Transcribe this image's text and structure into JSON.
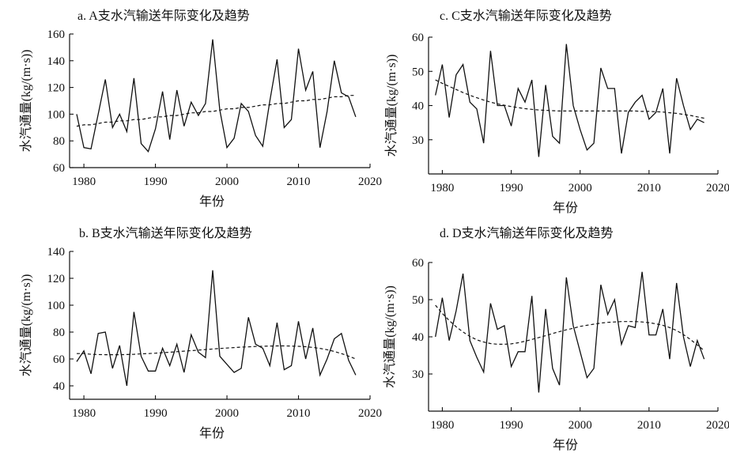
{
  "chart_data": [
    {
      "type": "line",
      "title": "a. A支水汽输送年际变化及趋势",
      "xlabel": "年份",
      "ylabel": "水汽通量(kg/(m·s))",
      "xlim": [
        1978,
        2020
      ],
      "ylim": [
        60,
        160
      ],
      "xticks": [
        1980,
        1990,
        2000,
        2010,
        2020
      ],
      "yticks": [
        60,
        80,
        100,
        120,
        140,
        160
      ],
      "x": [
        1979,
        1980,
        1981,
        1982,
        1983,
        1984,
        1985,
        1986,
        1987,
        1988,
        1989,
        1990,
        1991,
        1992,
        1993,
        1994,
        1995,
        1996,
        1997,
        1998,
        1999,
        2000,
        2001,
        2002,
        2003,
        2004,
        2005,
        2006,
        2007,
        2008,
        2009,
        2010,
        2011,
        2012,
        2013,
        2014,
        2015,
        2016,
        2017,
        2018
      ],
      "series": [
        {
          "values": [
            100,
            75,
            74,
            100,
            126,
            90,
            100,
            87,
            127,
            78,
            72,
            89,
            117,
            81,
            118,
            91,
            109,
            99,
            108,
            156,
            103,
            75,
            82,
            108,
            102,
            84,
            76,
            110,
            141,
            90,
            96,
            149,
            118,
            132,
            75,
            102,
            140,
            116,
            113,
            98
          ]
        },
        {
          "style": "trend",
          "values": [
            91,
            92,
            92,
            93,
            94,
            94,
            95,
            95,
            96,
            96,
            97,
            98,
            98,
            99,
            99,
            100,
            101,
            101,
            102,
            102,
            103,
            104,
            104,
            105,
            105,
            106,
            107,
            107,
            108,
            108,
            109,
            110,
            110,
            111,
            111,
            112,
            113,
            113,
            114,
            114
          ]
        }
      ]
    },
    {
      "type": "line",
      "title": "c. C支水汽输送年际变化及趋势",
      "xlabel": "年份",
      "ylabel": "水汽通量(kg/(m·s))",
      "xlim": [
        1978,
        2020
      ],
      "ylim": [
        20,
        60
      ],
      "xticks": [
        1980,
        1990,
        2000,
        2010,
        2020
      ],
      "yticks": [
        30,
        40,
        50,
        60
      ],
      "x": [
        1979,
        1980,
        1981,
        1982,
        1983,
        1984,
        1985,
        1986,
        1987,
        1988,
        1989,
        1990,
        1991,
        1992,
        1993,
        1994,
        1995,
        1996,
        1997,
        1998,
        1999,
        2000,
        2001,
        2002,
        2003,
        2004,
        2005,
        2006,
        2007,
        2008,
        2009,
        2010,
        2011,
        2012,
        2013,
        2014,
        2015,
        2016,
        2017,
        2018
      ],
      "series": [
        {
          "values": [
            43,
            52,
            36.5,
            49,
            52,
            41,
            39,
            29,
            56,
            40,
            40,
            34,
            45,
            41,
            47.5,
            25,
            46,
            31,
            29,
            58,
            40,
            33,
            27,
            29,
            51,
            45,
            45,
            26,
            38,
            41,
            43,
            36,
            38,
            45,
            26,
            48,
            40,
            33,
            36,
            35
          ]
        },
        {
          "style": "trend",
          "values": [
            47.5,
            46.5,
            45.6,
            44.7,
            43.8,
            43.0,
            42.3,
            41.6,
            41.0,
            40.5,
            40.1,
            39.7,
            39.4,
            39.1,
            38.9,
            38.7,
            38.6,
            38.5,
            38.4,
            38.4,
            38.4,
            38.4,
            38.4,
            38.4,
            38.4,
            38.4,
            38.4,
            38.4,
            38.4,
            38.4,
            38.3,
            38.3,
            38.2,
            38.1,
            37.9,
            37.7,
            37.4,
            37.1,
            36.7,
            36.3
          ]
        }
      ]
    },
    {
      "type": "line",
      "title": "b. B支水汽输送年际变化及趋势",
      "xlabel": "年份",
      "ylabel": "水汽通量(kg/(m·s))",
      "xlim": [
        1978,
        2020
      ],
      "ylim": [
        30,
        140
      ],
      "xticks": [
        1980,
        1990,
        2000,
        2010,
        2020
      ],
      "yticks": [
        40,
        60,
        80,
        100,
        120,
        140
      ],
      "x": [
        1979,
        1980,
        1981,
        1982,
        1983,
        1984,
        1985,
        1986,
        1987,
        1988,
        1989,
        1990,
        1991,
        1992,
        1993,
        1994,
        1995,
        1996,
        1997,
        1998,
        1999,
        2000,
        2001,
        2002,
        2003,
        2004,
        2005,
        2006,
        2007,
        2008,
        2009,
        2010,
        2011,
        2012,
        2013,
        2014,
        2015,
        2016,
        2017,
        2018
      ],
      "series": [
        {
          "values": [
            58,
            66,
            49,
            79,
            80,
            53,
            70,
            40,
            95,
            62,
            51,
            51,
            68,
            55,
            71,
            50,
            78,
            65,
            61,
            126,
            62,
            56,
            50,
            53,
            91,
            71,
            68,
            55,
            87,
            52,
            55,
            88,
            60,
            83,
            48,
            60,
            75,
            79,
            59,
            48
          ]
        },
        {
          "style": "trend",
          "values": [
            64,
            64,
            63.5,
            63.3,
            63.2,
            63.2,
            63.2,
            63.3,
            63.5,
            63.8,
            64.0,
            64.3,
            64.7,
            65.0,
            65.4,
            65.8,
            66.2,
            66.6,
            67.0,
            67.4,
            67.8,
            68.1,
            68.5,
            68.8,
            69.0,
            69.3,
            69.5,
            69.6,
            69.7,
            69.7,
            69.6,
            69.4,
            69.1,
            68.6,
            67.9,
            66.9,
            65.6,
            64.0,
            62.1,
            60.0
          ]
        }
      ]
    },
    {
      "type": "line",
      "title": "d. D支水汽输送年际变化及趋势",
      "xlabel": "年份",
      "ylabel": "水汽通量(kg/(m·s))",
      "xlim": [
        1978,
        2020
      ],
      "ylim": [
        20,
        60
      ],
      "xticks": [
        1980,
        1990,
        2000,
        2010,
        2020
      ],
      "yticks": [
        30,
        40,
        50,
        60
      ],
      "x": [
        1979,
        1980,
        1981,
        1982,
        1983,
        1984,
        1985,
        1986,
        1987,
        1988,
        1989,
        1990,
        1991,
        1992,
        1993,
        1994,
        1995,
        1996,
        1997,
        1998,
        1999,
        2000,
        2001,
        2002,
        2003,
        2004,
        2005,
        2006,
        2007,
        2008,
        2009,
        2010,
        2011,
        2012,
        2013,
        2014,
        2015,
        2016,
        2017,
        2018
      ],
      "series": [
        {
          "values": [
            40,
            50.5,
            39,
            47,
            57,
            39,
            34.5,
            30.5,
            49,
            42,
            43,
            32,
            36,
            36,
            51,
            25,
            47.5,
            31.5,
            27,
            56,
            43,
            36,
            29,
            31.5,
            54,
            46,
            50,
            38,
            43,
            42.5,
            57.5,
            40.5,
            40.5,
            47.5,
            34,
            54.5,
            40,
            32,
            39,
            34
          ]
        },
        {
          "style": "trend",
          "values": [
            48.5,
            46.3,
            44.4,
            42.7,
            41.3,
            40.1,
            39.2,
            38.6,
            38.2,
            38.0,
            38.0,
            38.1,
            38.4,
            38.8,
            39.3,
            39.8,
            40.3,
            40.9,
            41.4,
            41.9,
            42.3,
            42.8,
            43.1,
            43.4,
            43.7,
            43.9,
            44.0,
            44.1,
            44.1,
            44.1,
            44.0,
            43.8,
            43.5,
            43.1,
            42.5,
            41.7,
            40.6,
            39.3,
            37.8,
            36.3
          ]
        }
      ]
    }
  ]
}
